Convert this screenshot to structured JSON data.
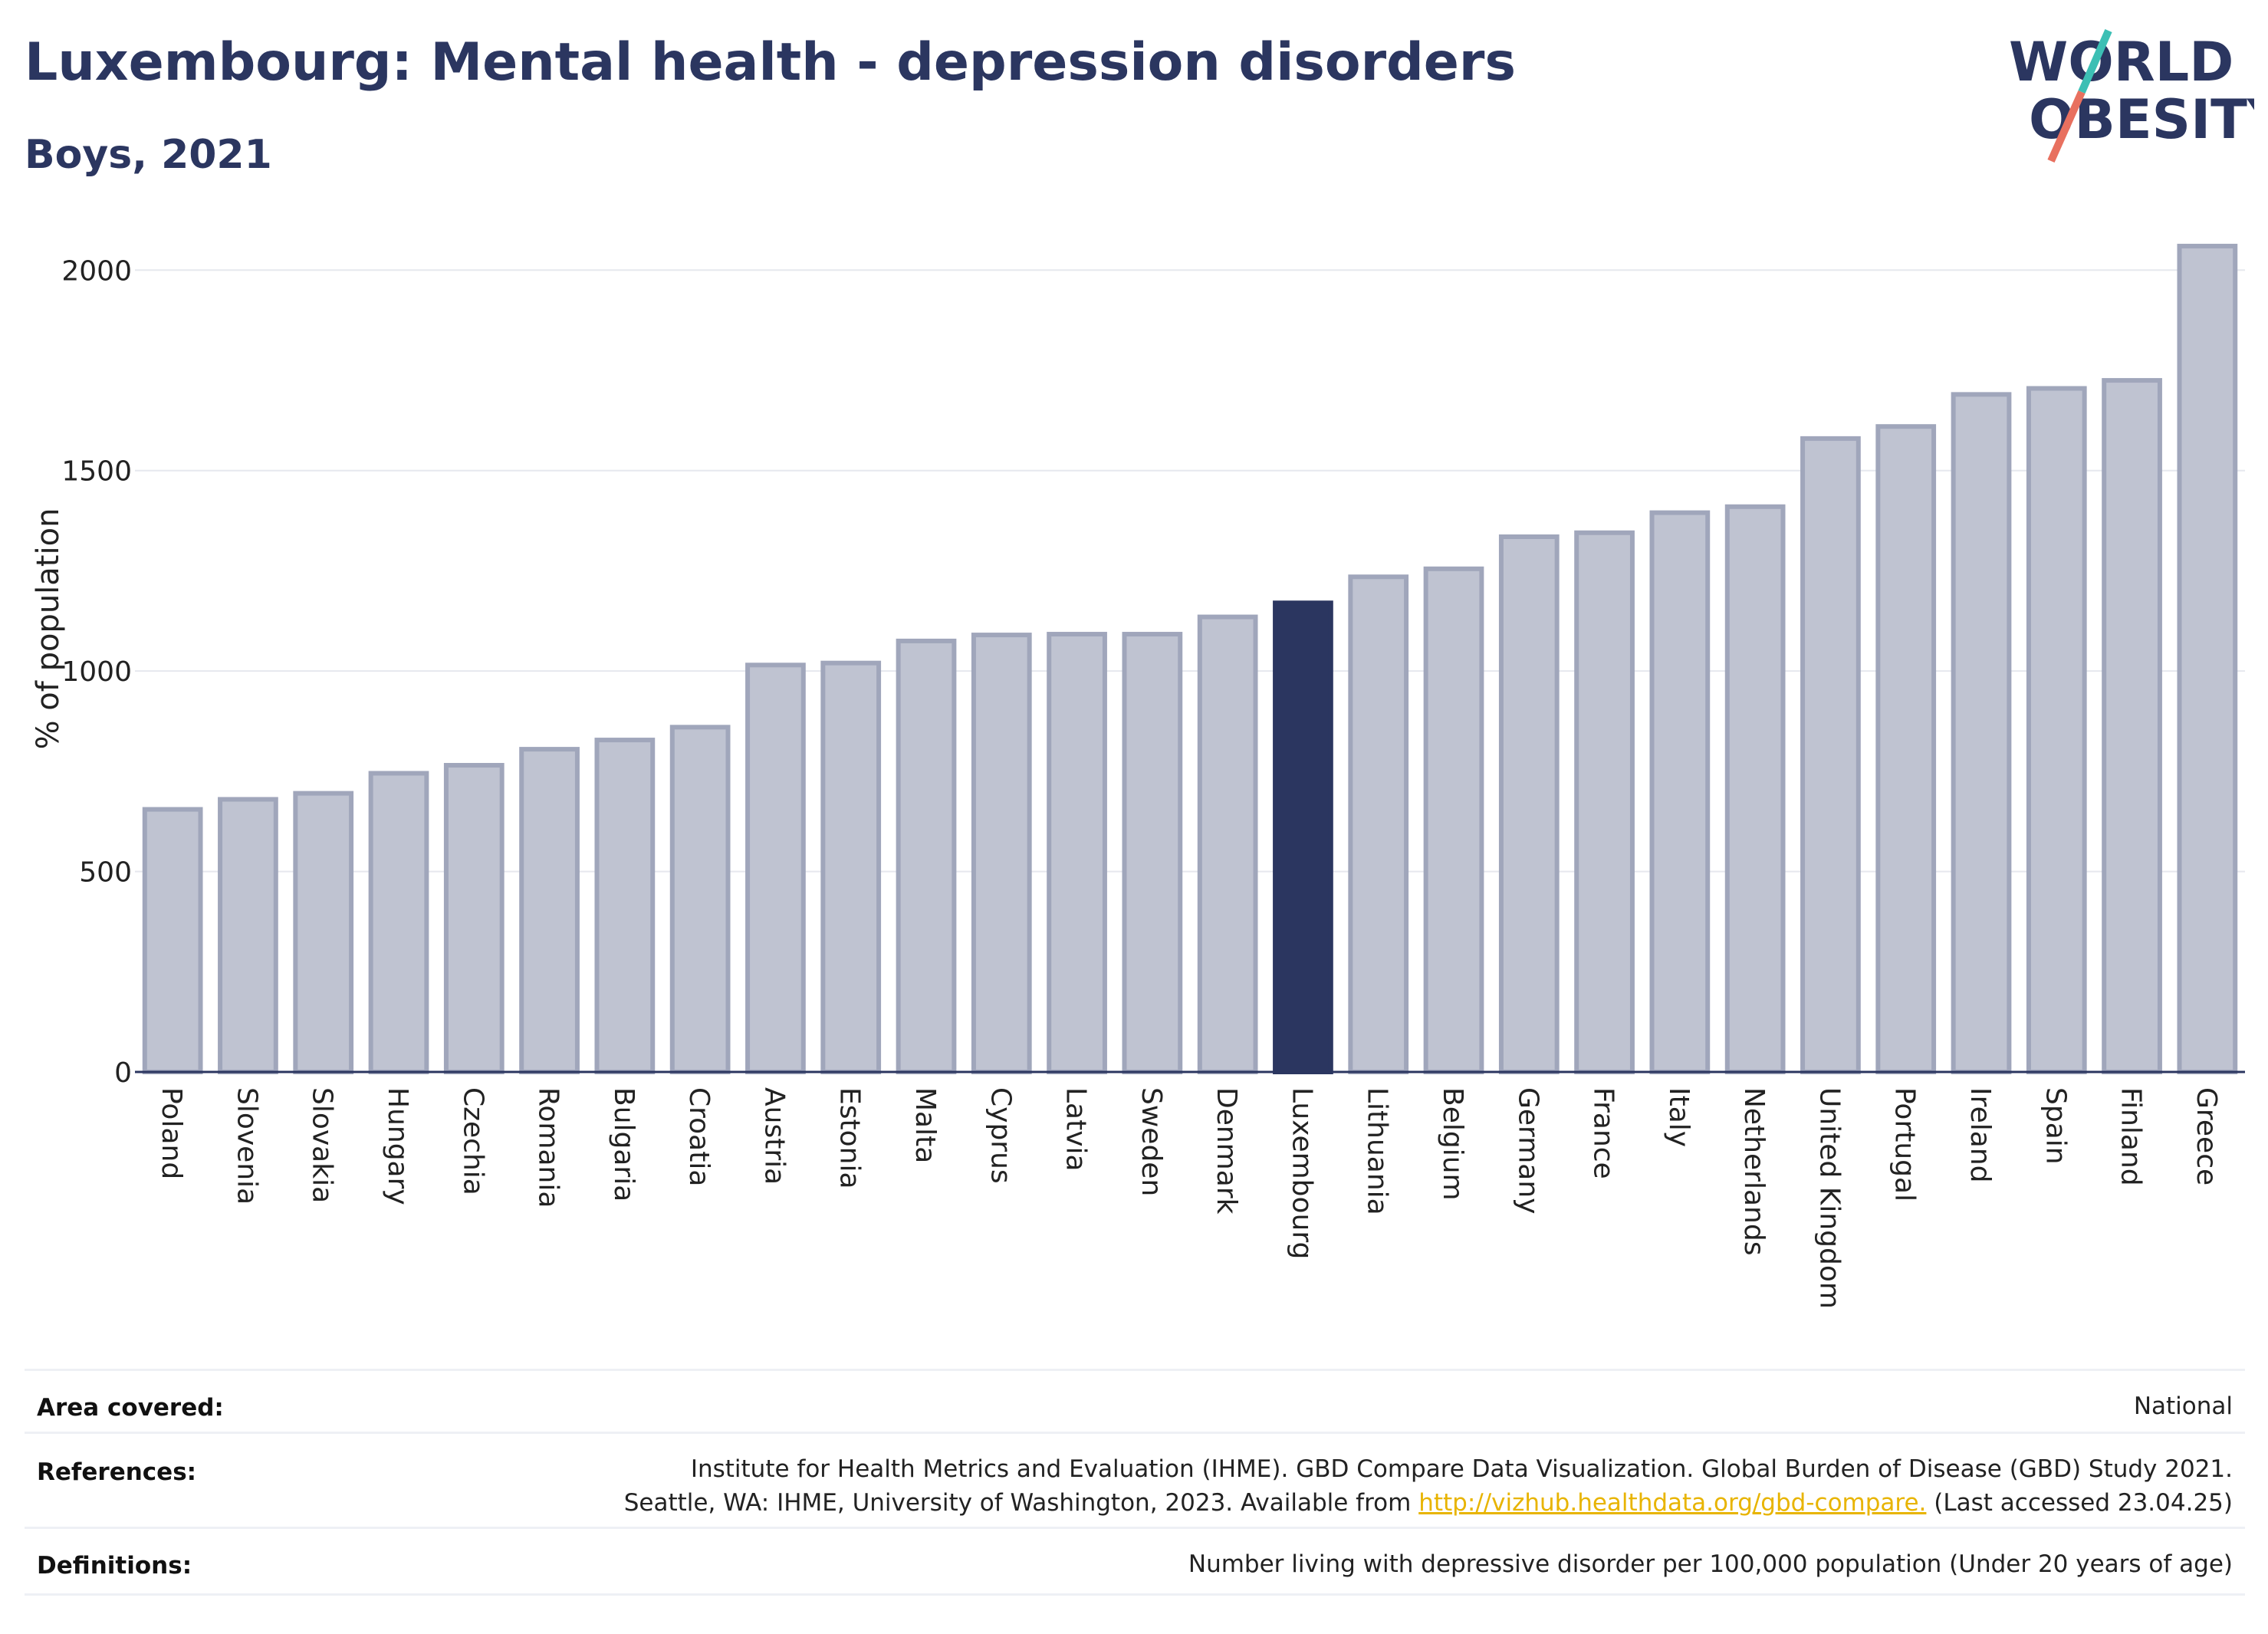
{
  "header": {
    "title": "Luxembourg: Mental health - depression disorders",
    "subtitle": "Boys, 2021"
  },
  "logo": {
    "line1": "WORLD",
    "line2": "OBESITY",
    "accent_teal": "#3cbfb4",
    "accent_coral": "#e8705f"
  },
  "chart_data": {
    "type": "bar",
    "ylabel": "% of population",
    "xlabel": "",
    "ylim": [
      0,
      2100
    ],
    "yticks": [
      0,
      500,
      1000,
      1500,
      2000
    ],
    "grid": true,
    "highlight": "Luxembourg",
    "colors": {
      "bar": "#bfc3d1",
      "bar_edge": "#a0a6bb",
      "highlight": "#2b3660",
      "axis": "#2b3660",
      "grid": "#e6e8ee"
    },
    "categories": [
      "Poland",
      "Slovenia",
      "Slovakia",
      "Hungary",
      "Czechia",
      "Romania",
      "Bulgaria",
      "Croatia",
      "Austria",
      "Estonia",
      "Malta",
      "Cyprus",
      "Latvia",
      "Sweden",
      "Denmark",
      "Luxembourg",
      "Lithuania",
      "Belgium",
      "Germany",
      "France",
      "Italy",
      "Netherlands",
      "United Kingdom",
      "Portugal",
      "Ireland",
      "Spain",
      "Finland",
      "Greece"
    ],
    "values": [
      655,
      680,
      695,
      745,
      765,
      805,
      828,
      860,
      1015,
      1020,
      1075,
      1090,
      1092,
      1092,
      1135,
      1170,
      1235,
      1255,
      1335,
      1345,
      1395,
      1410,
      1580,
      1610,
      1690,
      1705,
      1725,
      2060
    ]
  },
  "footer": {
    "rows": [
      {
        "label": "Area covered:",
        "lines": [
          "National"
        ]
      },
      {
        "label": "References:",
        "lines": [
          "Institute for Health Metrics and Evaluation (IHME). GBD Compare Data Visualization. Global Burden of Disease (GBD) Study 2021."
        ],
        "line2_prefix": "Seattle, WA: IHME, University of Washington, 2023. Available from ",
        "line2_link": "http://vizhub.healthdata.org/gbd-compare.",
        "line2_suffix": " (Last accessed 23.04.25)"
      },
      {
        "label": "Definitions:",
        "lines": [
          "Number living with depressive disorder per 100,000 population (Under 20 years of age)"
        ]
      }
    ]
  }
}
